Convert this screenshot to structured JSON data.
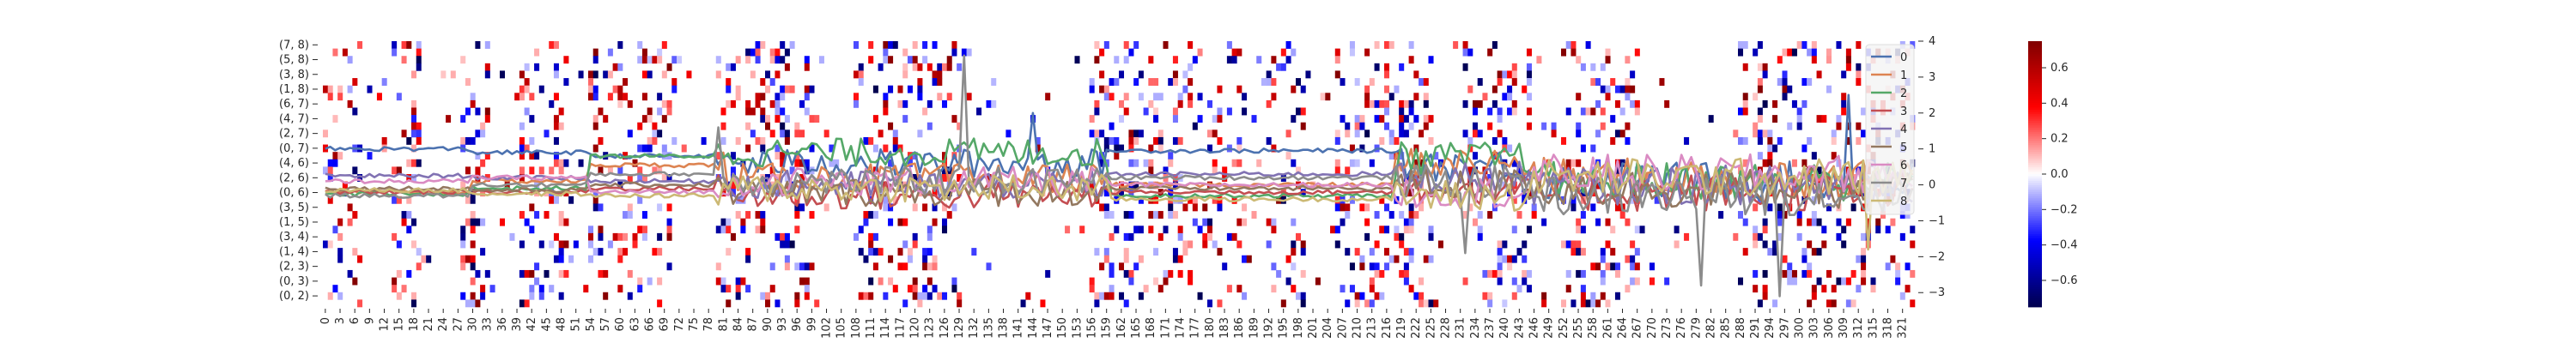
{
  "chart_data": {
    "type": "heatmap",
    "title": "",
    "xlabel": "",
    "ylabel": "",
    "heatmap": {
      "row_labels": [
        "(7, 8)",
        "(5, 8)",
        "(3, 8)",
        "(1, 8)",
        "(6, 7)",
        "(4, 7)",
        "(2, 7)",
        "(0, 7)",
        "(4, 6)",
        "(2, 6)",
        "(0, 6)",
        "(3, 5)",
        "(1, 5)",
        "(3, 4)",
        "(1, 4)",
        "(2, 3)",
        "(0, 3)",
        "(0, 2)"
      ],
      "n_rows": 36,
      "n_cols": 324,
      "x_tick_labels": [
        "0",
        "3",
        "6",
        "9",
        "12",
        "15",
        "18",
        "21",
        "24",
        "27",
        "30",
        "33",
        "36",
        "39",
        "42",
        "45",
        "48",
        "51",
        "54",
        "57",
        "60",
        "63",
        "66",
        "69",
        "72",
        "75",
        "78",
        "81",
        "84",
        "87",
        "90",
        "93",
        "96",
        "99",
        "102",
        "105",
        "108",
        "111",
        "114",
        "117",
        "120",
        "123",
        "126",
        "129",
        "132",
        "135",
        "138",
        "141",
        "144",
        "147",
        "150",
        "153",
        "156",
        "159",
        "162",
        "165",
        "168",
        "171",
        "174",
        "177",
        "180",
        "183",
        "186",
        "189",
        "192",
        "195",
        "198",
        "201",
        "204",
        "207",
        "210",
        "213",
        "216",
        "219",
        "222",
        "225",
        "228",
        "231",
        "234",
        "237",
        "240",
        "243",
        "246",
        "249",
        "252",
        "255",
        "258",
        "261",
        "264",
        "267",
        "270",
        "273",
        "276",
        "279",
        "282",
        "285",
        "288",
        "291",
        "294",
        "297",
        "300",
        "303",
        "306",
        "309",
        "312",
        "315",
        "318",
        "321"
      ],
      "colorbar": {
        "min": -0.75,
        "max": 0.75,
        "ticks": [
          "0.6",
          "0.4",
          "0.2",
          "0.0",
          "−0.2",
          "−0.4",
          "−0.6"
        ],
        "tick_values": [
          0.6,
          0.4,
          0.2,
          0.0,
          -0.2,
          -0.4,
          -0.6
        ]
      },
      "active_columns": [
        [
          0,
          8
        ],
        [
          14,
          20
        ],
        [
          28,
          34
        ],
        [
          40,
          50
        ],
        [
          54,
          72
        ],
        [
          80,
          100
        ],
        [
          108,
          130
        ],
        [
          156,
          188
        ],
        [
          192,
          200
        ],
        [
          206,
          226
        ],
        [
          232,
          246
        ],
        [
          252,
          268
        ],
        [
          288,
          324
        ]
      ],
      "active_density": 0.22
    },
    "lines": {
      "y_axis": {
        "range": [
          -3.4,
          4
        ],
        "ticks": [
          -3,
          -2,
          -1,
          0,
          1,
          2,
          3,
          4
        ]
      },
      "legend": [
        "0",
        "1",
        "2",
        "3",
        "4",
        "5",
        "6",
        "7",
        "8"
      ],
      "colors": [
        "#4c72b0",
        "#dd8452",
        "#55a868",
        "#c44e52",
        "#8172b3",
        "#937860",
        "#da8bc3",
        "#8c8c8c",
        "#ccb974"
      ],
      "series_levels": [
        {
          "name": "0",
          "segments": [
            [
              0,
              30,
              1.0
            ],
            [
              30,
              54,
              0.9
            ],
            [
              54,
              82,
              0.8
            ],
            [
              82,
              160,
              0.6
            ],
            [
              160,
              218,
              0.95
            ],
            [
              218,
              246,
              0.55
            ],
            [
              246,
              324,
              0.1
            ]
          ]
        },
        {
          "name": "1",
          "segments": [
            [
              0,
              30,
              -0.2
            ],
            [
              30,
              54,
              0.1
            ],
            [
              54,
              82,
              0.55
            ],
            [
              82,
              160,
              0.2
            ],
            [
              160,
              218,
              0.0
            ],
            [
              218,
              246,
              0.6
            ],
            [
              246,
              324,
              0.2
            ]
          ]
        },
        {
          "name": "2",
          "segments": [
            [
              0,
              30,
              -0.25
            ],
            [
              30,
              54,
              -0.1
            ],
            [
              54,
              82,
              0.8
            ],
            [
              82,
              160,
              0.9
            ],
            [
              160,
              218,
              -0.3
            ],
            [
              218,
              246,
              0.75
            ],
            [
              246,
              324,
              0.1
            ]
          ]
        },
        {
          "name": "3",
          "segments": [
            [
              0,
              30,
              -0.2
            ],
            [
              30,
              54,
              -0.2
            ],
            [
              54,
              82,
              -0.1
            ],
            [
              82,
              160,
              -0.3
            ],
            [
              160,
              218,
              -0.2
            ],
            [
              218,
              246,
              -0.1
            ],
            [
              246,
              324,
              -0.2
            ]
          ]
        },
        {
          "name": "4",
          "segments": [
            [
              0,
              30,
              0.25
            ],
            [
              30,
              54,
              0.2
            ],
            [
              54,
              82,
              0.1
            ],
            [
              82,
              160,
              0.0
            ],
            [
              160,
              218,
              0.3
            ],
            [
              218,
              246,
              0.2
            ],
            [
              246,
              324,
              0.0
            ]
          ]
        },
        {
          "name": "5",
          "segments": [
            [
              0,
              30,
              -0.1
            ],
            [
              30,
              54,
              -0.15
            ],
            [
              54,
              82,
              0.0
            ],
            [
              82,
              160,
              -0.2
            ],
            [
              160,
              218,
              -0.1
            ],
            [
              218,
              246,
              0.0
            ],
            [
              246,
              324,
              -0.1
            ]
          ]
        },
        {
          "name": "6",
          "segments": [
            [
              0,
              30,
              0.1
            ],
            [
              30,
              54,
              0.2
            ],
            [
              54,
              82,
              -0.2
            ],
            [
              82,
              160,
              0.1
            ],
            [
              160,
              218,
              0.0
            ],
            [
              218,
              246,
              -0.2
            ],
            [
              246,
              324,
              0.3
            ]
          ]
        },
        {
          "name": "7",
          "segments": [
            [
              0,
              30,
              -0.3
            ],
            [
              30,
              54,
              0.0
            ],
            [
              54,
              82,
              0.3
            ],
            [
              82,
              160,
              0.1
            ],
            [
              160,
              218,
              0.2
            ],
            [
              218,
              246,
              0.1
            ],
            [
              246,
              324,
              -0.3
            ]
          ]
        },
        {
          "name": "8",
          "segments": [
            [
              0,
              30,
              -0.15
            ],
            [
              30,
              54,
              -0.25
            ],
            [
              54,
              82,
              -0.3
            ],
            [
              82,
              160,
              -0.1
            ],
            [
              160,
              218,
              -0.4
            ],
            [
              218,
              246,
              -0.3
            ],
            [
              246,
              324,
              0.2
            ]
          ]
        }
      ],
      "spikes": [
        {
          "series": "7",
          "x": 80,
          "y": 1.6
        },
        {
          "series": "7",
          "x": 130,
          "y": 3.6
        },
        {
          "series": "0",
          "x": 144,
          "y": 2.0
        },
        {
          "series": "7",
          "x": 232,
          "y": -1.9
        },
        {
          "series": "7",
          "x": 280,
          "y": -2.8
        },
        {
          "series": "7",
          "x": 296,
          "y": -3.1
        },
        {
          "series": "8",
          "x": 314,
          "y": -1.8
        },
        {
          "series": "0",
          "x": 310,
          "y": 2.5
        }
      ]
    }
  }
}
